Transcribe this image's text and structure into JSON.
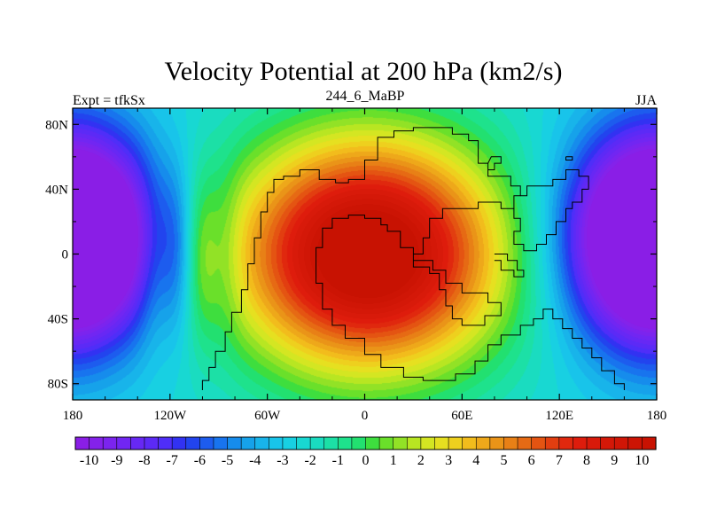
{
  "chart_data": {
    "type": "heatmap",
    "title": "Velocity Potential at 200 hPa (km2/s)",
    "left_label": "Expt = tfkSx",
    "center_label": "244_6_MaBP",
    "right_label": "JJA",
    "x_range": [
      -180,
      180
    ],
    "y_range": [
      -90,
      90
    ],
    "x_ticks": [
      {
        "value": -180,
        "label": "180"
      },
      {
        "value": -120,
        "label": "120W"
      },
      {
        "value": -60,
        "label": "60W"
      },
      {
        "value": 0,
        "label": "0"
      },
      {
        "value": 60,
        "label": "60E"
      },
      {
        "value": 120,
        "label": "120E"
      },
      {
        "value": 180,
        "label": "180"
      }
    ],
    "y_ticks": [
      {
        "value": 80,
        "label": "80N"
      },
      {
        "value": 40,
        "label": "40N"
      },
      {
        "value": 0,
        "label": "0"
      },
      {
        "value": -40,
        "label": "40S"
      },
      {
        "value": -80,
        "label": "80S"
      }
    ],
    "colorbar": {
      "min": -10.5,
      "max": 10.5,
      "step": 0.5,
      "tick_labels": [
        "-10",
        "-9",
        "-8",
        "-7",
        "-6",
        "-5",
        "-4",
        "-3",
        "-2",
        "-1",
        "0",
        "1",
        "2",
        "3",
        "4",
        "5",
        "6",
        "7",
        "8",
        "9",
        "10"
      ],
      "colors": [
        "#8a1ee6",
        "#8422ea",
        "#7b24ee",
        "#7126f2",
        "#6728f4",
        "#5c2af6",
        "#4f2ef8",
        "#3232f2",
        "#2244ee",
        "#1d5cee",
        "#1874ee",
        "#168cec",
        "#16a2ea",
        "#18b4ea",
        "#18c4ea",
        "#18d0e2",
        "#18d8d2",
        "#1adcc0",
        "#1ce0a6",
        "#1ee28c",
        "#22e070",
        "#3ede3e",
        "#6ae02a",
        "#92e226",
        "#b8e622",
        "#d4e622",
        "#e6e020",
        "#eed01e",
        "#f2bc1c",
        "#eea81a",
        "#ea9418",
        "#e88016",
        "#e66a14",
        "#e45412",
        "#e23e10",
        "#e0280e",
        "#de1c0c",
        "#d81a0a",
        "#d41808",
        "#d01606",
        "#cc1404",
        "#c81202"
      ]
    },
    "features": {
      "westerly_low_center": {
        "lon": -178,
        "lat": 10,
        "value": -10.5
      },
      "easterly_low_center": {
        "lon": 172,
        "lat": 8,
        "value": -10.5
      },
      "high_center": {
        "lon": 2,
        "lat": 0,
        "value": 10.5
      }
    }
  }
}
